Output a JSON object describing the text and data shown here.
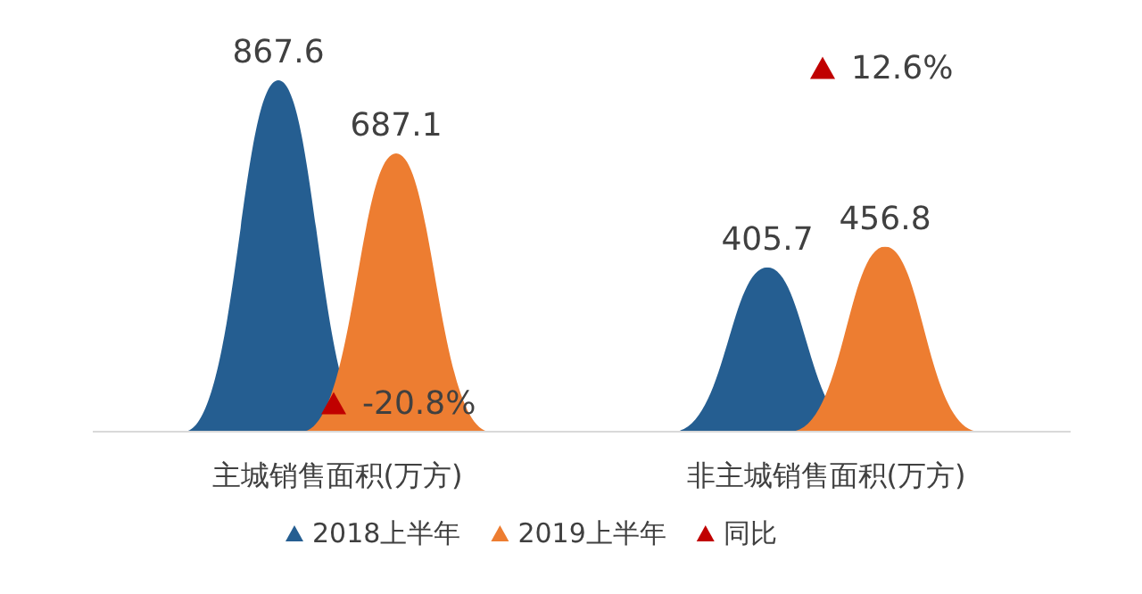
{
  "chart_data": {
    "type": "bar",
    "categories": [
      "主城销售面积(万方)",
      "非主城销售面积(万方)"
    ],
    "series": [
      {
        "name": "2018上半年",
        "color": "#255e91",
        "values": [
          867.6,
          405.7
        ]
      },
      {
        "name": "2019上半年",
        "color": "#ed7d31",
        "values": [
          687.1,
          456.8
        ]
      },
      {
        "name": "同比",
        "type": "scatter",
        "axis": "y2",
        "color": "#c00000",
        "values": [
          -20.8,
          12.6
        ],
        "value_labels": [
          "-20.8%",
          "12.6%"
        ]
      }
    ],
    "data_labels": true,
    "tick_labels": "x",
    "marker": "triangle",
    "legend": "bottom",
    "grid": false
  }
}
